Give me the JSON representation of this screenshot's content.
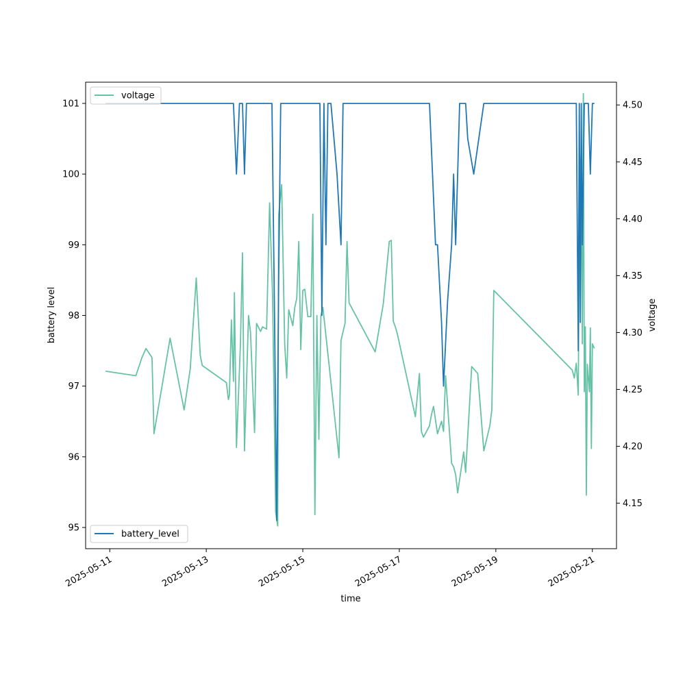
{
  "chart_data": {
    "type": "line",
    "xlabel": "time",
    "ylabel": "battery level",
    "y2label": "voltage",
    "xlim": [
      "2025-05-10T12:00",
      "2025-05-21T12:00"
    ],
    "ylim": [
      94.7,
      101.3
    ],
    "y2lim": [
      4.11,
      4.52
    ],
    "x_ticks": [
      "2025-05-11",
      "2025-05-13",
      "2025-05-15",
      "2025-05-17",
      "2025-05-19",
      "2025-05-21"
    ],
    "y_ticks": [
      95,
      96,
      97,
      98,
      99,
      100,
      101
    ],
    "y2_ticks": [
      "4.15",
      "4.20",
      "4.25",
      "4.30",
      "4.35",
      "4.40",
      "4.45",
      "4.50"
    ],
    "grid": false,
    "colors": {
      "battery_level": "#1f77b4",
      "voltage": "#66c2a5"
    },
    "series": [
      {
        "name": "battery_level",
        "axis": "left",
        "legend": "lower-left",
        "points": [
          [
            "2025-05-10T21:55",
            101
          ],
          [
            "2025-05-13T13:30",
            101
          ],
          [
            "2025-05-13T15:00",
            100
          ],
          [
            "2025-05-13T16:30",
            101
          ],
          [
            "2025-05-13T18:00",
            101
          ],
          [
            "2025-05-13T19:00",
            100
          ],
          [
            "2025-05-13T20:00",
            101
          ],
          [
            "2025-05-14T08:40",
            101
          ],
          [
            "2025-05-14T10:00",
            97.9
          ],
          [
            "2025-05-14T11:00",
            95.1
          ],
          [
            "2025-05-14T12:00",
            98.5
          ],
          [
            "2025-05-14T13:00",
            101
          ],
          [
            "2025-05-15T08:30",
            101
          ],
          [
            "2025-05-15T09:30",
            98.0
          ],
          [
            "2025-05-15T10:30",
            101
          ],
          [
            "2025-05-15T11:30",
            99.0
          ],
          [
            "2025-05-15T12:30",
            101
          ],
          [
            "2025-05-15T14:00",
            101
          ],
          [
            "2025-05-15T17:00",
            100.0
          ],
          [
            "2025-05-15T19:00",
            99.0
          ],
          [
            "2025-05-15T20:00",
            101
          ],
          [
            "2025-05-17T15:00",
            101
          ],
          [
            "2025-05-17T18:00",
            99.0
          ],
          [
            "2025-05-17T19:00",
            99.0
          ],
          [
            "2025-05-17T21:00",
            97.9
          ],
          [
            "2025-05-17T22:00",
            97.0
          ],
          [
            "2025-05-18T00:00",
            98.2
          ],
          [
            "2025-05-18T02:00",
            99.0
          ],
          [
            "2025-05-18T03:00",
            100.0
          ],
          [
            "2025-05-18T04:00",
            99.0
          ],
          [
            "2025-05-18T05:00",
            100.0
          ],
          [
            "2025-05-18T06:00",
            101
          ],
          [
            "2025-05-18T09:00",
            101
          ],
          [
            "2025-05-18T10:00",
            100.5
          ],
          [
            "2025-05-18T13:00",
            100.0
          ],
          [
            "2025-05-18T18:00",
            101
          ],
          [
            "2025-05-20T16:00",
            101
          ],
          [
            "2025-05-20T17:00",
            97.5
          ],
          [
            "2025-05-20T17:30",
            101
          ],
          [
            "2025-05-20T18:00",
            97.9
          ],
          [
            "2025-05-20T18:30",
            101
          ],
          [
            "2025-05-20T19:00",
            99.0
          ],
          [
            "2025-05-20T20:00",
            101
          ],
          [
            "2025-05-20T22:00",
            101
          ],
          [
            "2025-05-20T23:00",
            100.0
          ],
          [
            "2025-05-21T00:00",
            101
          ],
          [
            "2025-05-21T01:00",
            101
          ]
        ]
      },
      {
        "name": "voltage",
        "axis": "right",
        "legend": "upper-left",
        "points": [
          [
            "2025-05-10T21:55",
            4.266
          ],
          [
            "2025-05-11T13:00",
            4.262
          ],
          [
            "2025-05-11T16:00",
            4.278
          ],
          [
            "2025-05-11T18:00",
            4.286
          ],
          [
            "2025-05-11T21:00",
            4.278
          ],
          [
            "2025-05-11T22:00",
            4.211
          ],
          [
            "2025-05-12T06:00",
            4.295
          ],
          [
            "2025-05-12T13:00",
            4.232
          ],
          [
            "2025-05-12T16:00",
            4.268
          ],
          [
            "2025-05-12T19:00",
            4.348
          ],
          [
            "2025-05-12T21:00",
            4.28
          ],
          [
            "2025-05-12T22:00",
            4.271
          ],
          [
            "2025-05-13T10:00",
            4.256
          ],
          [
            "2025-05-13T11:00",
            4.241
          ],
          [
            "2025-05-13T11:30",
            4.245
          ],
          [
            "2025-05-13T12:30",
            4.311
          ],
          [
            "2025-05-13T13:30",
            4.257
          ],
          [
            "2025-05-13T14:00",
            4.335
          ],
          [
            "2025-05-13T15:00",
            4.199
          ],
          [
            "2025-05-13T17:00",
            4.29
          ],
          [
            "2025-05-13T18:00",
            4.37
          ],
          [
            "2025-05-13T19:00",
            4.196
          ],
          [
            "2025-05-13T21:00",
            4.315
          ],
          [
            "2025-05-13T22:00",
            4.3
          ],
          [
            "2025-05-14T00:00",
            4.212
          ],
          [
            "2025-05-14T01:00",
            4.308
          ],
          [
            "2025-05-14T03:00",
            4.301
          ],
          [
            "2025-05-14T04:00",
            4.305
          ],
          [
            "2025-05-14T06:00",
            4.303
          ],
          [
            "2025-05-14T07:30",
            4.414
          ],
          [
            "2025-05-14T09:00",
            4.33
          ],
          [
            "2025-05-14T10:30",
            4.142
          ],
          [
            "2025-05-14T11:30",
            4.13
          ],
          [
            "2025-05-14T12:00",
            4.403
          ],
          [
            "2025-05-14T13:30",
            4.43
          ],
          [
            "2025-05-14T15:00",
            4.29
          ],
          [
            "2025-05-14T16:00",
            4.26
          ],
          [
            "2025-05-14T17:00",
            4.32
          ],
          [
            "2025-05-14T19:00",
            4.306
          ],
          [
            "2025-05-14T20:00",
            4.322
          ],
          [
            "2025-05-14T21:00",
            4.33
          ],
          [
            "2025-05-14T22:00",
            4.38
          ],
          [
            "2025-05-14T23:00",
            4.285
          ],
          [
            "2025-05-15T00:00",
            4.337
          ],
          [
            "2025-05-15T01:00",
            4.338
          ],
          [
            "2025-05-15T02:30",
            4.314
          ],
          [
            "2025-05-15T04:00",
            4.314
          ],
          [
            "2025-05-15T05:00",
            4.404
          ],
          [
            "2025-05-15T06:00",
            4.14
          ],
          [
            "2025-05-15T07:00",
            4.315
          ],
          [
            "2025-05-15T08:00",
            4.206
          ],
          [
            "2025-05-15T09:00",
            4.315
          ],
          [
            "2025-05-15T10:00",
            4.322
          ],
          [
            "2025-05-15T18:00",
            4.19
          ],
          [
            "2025-05-15T19:00",
            4.293
          ],
          [
            "2025-05-15T21:00",
            4.308
          ],
          [
            "2025-05-15T22:00",
            4.38
          ],
          [
            "2025-05-15T23:00",
            4.326
          ],
          [
            "2025-05-16T12:00",
            4.283
          ],
          [
            "2025-05-16T16:00",
            4.325
          ],
          [
            "2025-05-16T19:00",
            4.38
          ],
          [
            "2025-05-16T20:00",
            4.381
          ],
          [
            "2025-05-16T21:00",
            4.31
          ],
          [
            "2025-05-16T22:00",
            4.305
          ],
          [
            "2025-05-16T23:00",
            4.299
          ],
          [
            "2025-05-17T08:00",
            4.226
          ],
          [
            "2025-05-17T10:00",
            4.264
          ],
          [
            "2025-05-17T11:00",
            4.213
          ],
          [
            "2025-05-17T12:00",
            4.208
          ],
          [
            "2025-05-17T15:00",
            4.218
          ],
          [
            "2025-05-17T16:00",
            4.228
          ],
          [
            "2025-05-17T17:00",
            4.235
          ],
          [
            "2025-05-17T19:00",
            4.211
          ],
          [
            "2025-05-17T21:00",
            4.222
          ],
          [
            "2025-05-17T22:00",
            4.213
          ],
          [
            "2025-05-17T23:00",
            4.262
          ],
          [
            "2025-05-18T02:00",
            4.185
          ],
          [
            "2025-05-18T03:00",
            4.182
          ],
          [
            "2025-05-18T04:00",
            4.175
          ],
          [
            "2025-05-18T05:00",
            4.159
          ],
          [
            "2025-05-18T08:00",
            4.195
          ],
          [
            "2025-05-18T09:00",
            4.177
          ],
          [
            "2025-05-18T12:00",
            4.27
          ],
          [
            "2025-05-18T15:00",
            4.264
          ],
          [
            "2025-05-18T18:00",
            4.196
          ],
          [
            "2025-05-18T21:00",
            4.218
          ],
          [
            "2025-05-18T22:00",
            4.232
          ],
          [
            "2025-05-18T23:00",
            4.337
          ],
          [
            "2025-05-20T14:00",
            4.267
          ],
          [
            "2025-05-20T15:00",
            4.26
          ],
          [
            "2025-05-20T16:00",
            4.273
          ],
          [
            "2025-05-20T17:00",
            4.245
          ],
          [
            "2025-05-20T17:30",
            4.4
          ],
          [
            "2025-05-20T18:00",
            4.445
          ],
          [
            "2025-05-20T18:30",
            4.46
          ],
          [
            "2025-05-20T19:00",
            4.29
          ],
          [
            "2025-05-20T19:30",
            4.51
          ],
          [
            "2025-05-20T20:00",
            4.248
          ],
          [
            "2025-05-20T20:30",
            4.305
          ],
          [
            "2025-05-20T21:00",
            4.157
          ],
          [
            "2025-05-20T21:30",
            4.272
          ],
          [
            "2025-05-20T22:00",
            4.26
          ],
          [
            "2025-05-20T22:30",
            4.248
          ],
          [
            "2025-05-20T23:00",
            4.304
          ],
          [
            "2025-05-20T23:30",
            4.198
          ],
          [
            "2025-05-21T00:00",
            4.29
          ],
          [
            "2025-05-21T01:00",
            4.286
          ]
        ]
      }
    ]
  }
}
